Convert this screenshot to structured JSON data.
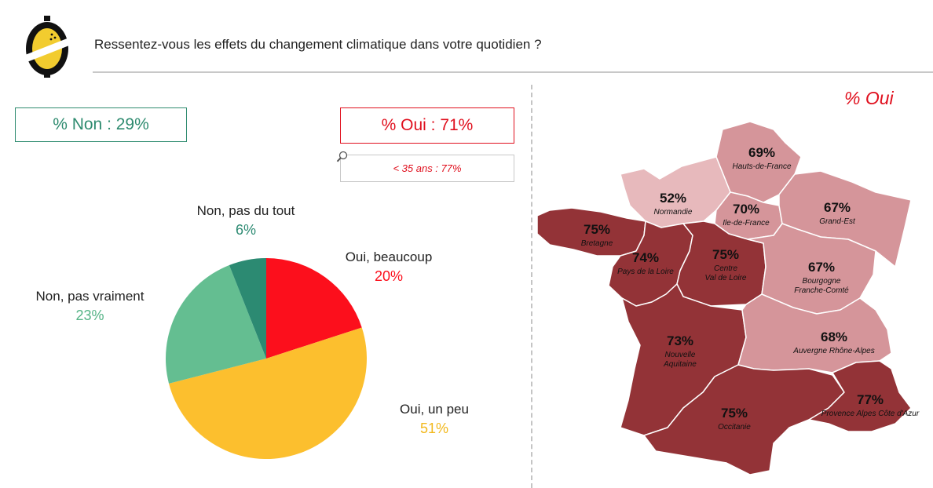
{
  "header": {
    "question": "Ressentez-vous les effets du changement climatique dans votre quotidien ?"
  },
  "summary": {
    "non_label": "% Non : 29%",
    "oui_label": "% Oui : 71%",
    "sub_label": "< 35 ans : 77%"
  },
  "colors": {
    "non_accent": "#2e8b6f",
    "oui_accent": "#e0101e"
  },
  "chart_data": [
    {
      "type": "pie",
      "title": "",
      "slices": [
        {
          "label": "Oui, beaucoup",
          "value": 20,
          "pct_label": "20%",
          "color": "#fc0f1c"
        },
        {
          "label": "Oui, un peu",
          "value": 51,
          "pct_label": "51%",
          "color": "#fcbf2e"
        },
        {
          "label": "Non, pas vraiment",
          "value": 23,
          "pct_label": "23%",
          "color": "#64be91"
        },
        {
          "label": "Non, pas du tout",
          "value": 6,
          "pct_label": "6%",
          "color": "#2c8a72"
        }
      ]
    },
    {
      "type": "heatmap",
      "title": "% Oui",
      "regions": [
        {
          "name": "Hauts-de-France",
          "value": 69,
          "pct_label": "69%",
          "color": "#d5959a"
        },
        {
          "name": "Normandie",
          "value": 52,
          "pct_label": "52%",
          "color": "#e7b9bc"
        },
        {
          "name": "Ile-de-France",
          "value": 70,
          "pct_label": "70%",
          "color": "#d5959a"
        },
        {
          "name": "Grand-Est",
          "value": 67,
          "pct_label": "67%",
          "color": "#d5959a"
        },
        {
          "name": "Bretagne",
          "value": 75,
          "pct_label": "75%",
          "color": "#933337"
        },
        {
          "name": "Pays de la Loire",
          "value": 74,
          "pct_label": "74%",
          "color": "#933337"
        },
        {
          "name": "Centre\nVal de Loire",
          "value": 75,
          "pct_label": "75%",
          "color": "#933337"
        },
        {
          "name": "Bourgogne\nFranche-Comté",
          "value": 67,
          "pct_label": "67%",
          "color": "#d5959a"
        },
        {
          "name": "Nouvelle\nAquitaine",
          "value": 73,
          "pct_label": "73%",
          "color": "#933337"
        },
        {
          "name": "Auvergne Rhône-Alpes",
          "value": 68,
          "pct_label": "68%",
          "color": "#d5959a"
        },
        {
          "name": "Occitanie",
          "value": 75,
          "pct_label": "75%",
          "color": "#933337"
        },
        {
          "name": "Provence Alpes Côte d'Azur",
          "value": 77,
          "pct_label": "77%",
          "color": "#933337"
        }
      ]
    }
  ]
}
